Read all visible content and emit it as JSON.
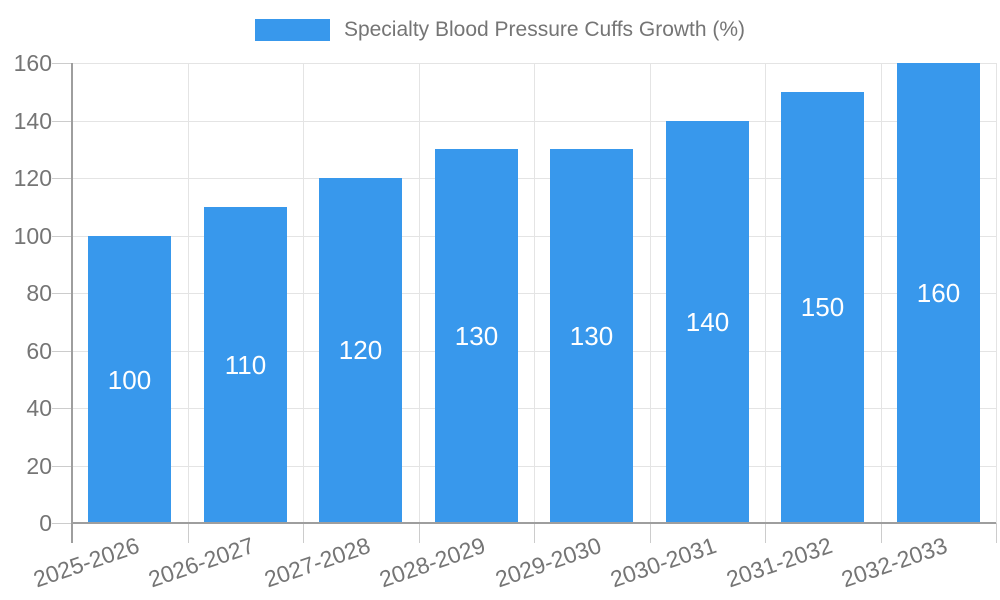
{
  "chart_data": {
    "type": "bar",
    "title": "Specialty Blood Pressure Cuffs Growth (%)",
    "categories": [
      "2025-2026",
      "2026-2027",
      "2027-2028",
      "2028-2029",
      "2029-2030",
      "2030-2031",
      "2031-2032",
      "2032-2033"
    ],
    "values": [
      100,
      110,
      120,
      130,
      130,
      140,
      150,
      160
    ],
    "bar_labels": [
      "100",
      "110",
      "120",
      "130",
      "130",
      "140",
      "150",
      "160"
    ],
    "xlabel": "",
    "ylabel": "",
    "ylim": [
      0,
      160
    ],
    "yticks": [
      0,
      20,
      40,
      60,
      80,
      100,
      120,
      140,
      160
    ],
    "grid": true,
    "legend_position": "top",
    "colors": {
      "bar": "#3898ec",
      "bar_label": "#ffffff",
      "axis_text": "#757575",
      "gridline": "#e4e4e4",
      "tick_mark": "#cccccc",
      "axis_line": "#9e9e9e",
      "background": "#ffffff"
    }
  }
}
